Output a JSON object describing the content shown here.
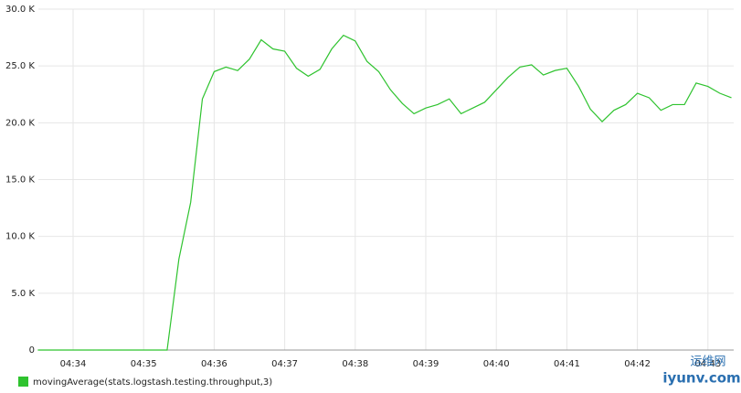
{
  "chart_data": {
    "type": "line",
    "x": [
      273.5,
      273.667,
      273.833,
      274.0,
      274.167,
      274.333,
      274.5,
      274.667,
      274.833,
      275.0,
      275.167,
      275.333,
      275.5,
      275.667,
      275.833,
      276.0,
      276.167,
      276.333,
      276.5,
      276.667,
      276.833,
      277.0,
      277.167,
      277.333,
      277.5,
      277.667,
      277.833,
      278.0,
      278.167,
      278.333,
      278.5,
      278.667,
      278.833,
      279.0,
      279.167,
      279.333,
      279.5,
      279.667,
      279.833,
      280.0,
      280.167,
      280.333,
      280.5,
      280.667,
      280.833,
      281.0,
      281.167,
      281.333,
      281.5,
      281.667,
      281.833,
      282.0,
      282.167,
      282.333,
      282.5,
      282.667,
      282.833,
      283.0,
      283.167,
      283.333
    ],
    "series": [
      {
        "name": "movingAverage(stats.logstash.testing.throughput,3)",
        "color": "#2fc32f",
        "values": [
          0,
          0,
          0,
          0,
          0,
          0,
          0,
          0,
          0,
          0,
          0,
          0,
          8000,
          13000,
          22100,
          24500,
          24900,
          24600,
          25600,
          27300,
          26500,
          26300,
          24800,
          24100,
          24700,
          26500,
          27700,
          27200,
          25400,
          24500,
          22900,
          21700,
          20800,
          21300,
          21600,
          22100,
          20800,
          21300,
          21800,
          22900,
          24000,
          24900,
          25100,
          24200,
          24600,
          24800,
          23200,
          21200,
          20100,
          21100,
          21600,
          22600,
          22200,
          21100,
          21600,
          21600,
          23500,
          23200,
          22600,
          22200
        ]
      }
    ],
    "xlim": [
      273.508,
      283.365
    ],
    "xticks": [
      {
        "value": 274,
        "label": "04:34"
      },
      {
        "value": 275,
        "label": "04:35"
      },
      {
        "value": 276,
        "label": "04:36"
      },
      {
        "value": 277,
        "label": "04:37"
      },
      {
        "value": 278,
        "label": "04:38"
      },
      {
        "value": 279,
        "label": "04:39"
      },
      {
        "value": 280,
        "label": "04:40"
      },
      {
        "value": 281,
        "label": "04:41"
      },
      {
        "value": 282,
        "label": "04:42"
      },
      {
        "value": 283,
        "label": "04:43"
      }
    ],
    "ylim": [
      0,
      30000
    ],
    "yticks": [
      0,
      {
        "value": 5000,
        "label": "5.0 K"
      },
      {
        "value": 10000,
        "label": "10.0 K"
      },
      {
        "value": 15000,
        "label": "15.0 K"
      },
      {
        "value": 20000,
        "label": "20.0 K"
      },
      {
        "value": 25000,
        "label": "25.0 K"
      },
      {
        "value": 30000,
        "label": "30.0 K"
      }
    ],
    "grid": true,
    "legend": "bottom-left",
    "watermark": [
      "运维网",
      "iyunv.com"
    ]
  }
}
